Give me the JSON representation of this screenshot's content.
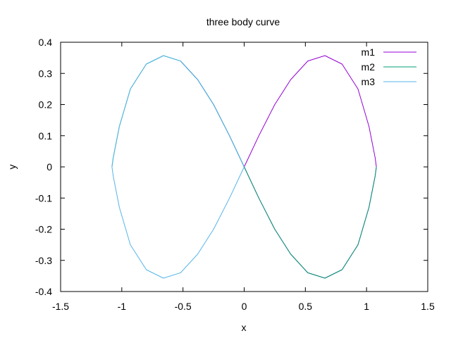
{
  "chart_data": {
    "type": "line",
    "title": "three body curve",
    "xlabel": "x",
    "ylabel": "y",
    "xlim": [
      -1.5,
      1.5
    ],
    "ylim": [
      -0.4,
      0.4
    ],
    "xticks": [
      -1.5,
      -1,
      -0.5,
      0,
      0.5,
      1,
      1.5
    ],
    "yticks": [
      -0.4,
      -0.3,
      -0.2,
      -0.1,
      0,
      0.1,
      0.2,
      0.3,
      0.4
    ],
    "xtick_labels": [
      "-1.5",
      "-1",
      "-0.5",
      "0",
      "0.5",
      "1",
      "1.5"
    ],
    "ytick_labels": [
      "-0.4",
      "-0.3",
      "-0.2",
      "-0.1",
      "0",
      "0.1",
      "0.2",
      "0.3",
      "0.4"
    ],
    "grid": false,
    "legend_position": "top-right",
    "series": [
      {
        "name": "m1",
        "color": "#9400d3",
        "x": [
          0.0,
          0.12,
          0.25,
          0.38,
          0.52,
          0.66,
          0.8,
          0.93,
          1.02,
          1.07,
          1.08,
          1.07,
          1.02,
          0.93,
          0.8,
          0.66,
          0.52,
          0.38,
          0.25,
          0.12,
          0.0,
          -0.12,
          -0.25,
          -0.38,
          -0.52
        ],
        "y": [
          0.0,
          0.1,
          0.2,
          0.28,
          0.34,
          0.357,
          0.33,
          0.25,
          0.13,
          0.03,
          0.0,
          -0.03,
          -0.13,
          -0.25,
          -0.33,
          -0.357,
          -0.34,
          -0.28,
          -0.2,
          -0.1,
          0.0,
          0.1,
          0.2,
          0.28,
          0.34
        ]
      },
      {
        "name": "m2",
        "color": "#009e73",
        "x": [
          -1.08,
          -1.07,
          -1.02,
          -0.93,
          -0.8,
          -0.66,
          -0.52,
          -0.38,
          -0.25,
          -0.12,
          0.0,
          0.12,
          0.25,
          0.38,
          0.52,
          0.66,
          0.8,
          0.93,
          1.02,
          1.07,
          1.08
        ],
        "y": [
          0.0,
          0.03,
          0.13,
          0.25,
          0.33,
          0.357,
          0.34,
          0.28,
          0.2,
          0.1,
          0.0,
          -0.1,
          -0.2,
          -0.28,
          -0.34,
          -0.357,
          -0.33,
          -0.25,
          -0.13,
          -0.03,
          0.0
        ]
      },
      {
        "name": "m3",
        "color": "#56b4e9",
        "x": [
          0.0,
          -0.12,
          -0.25,
          -0.38,
          -0.52,
          -0.66,
          -0.8,
          -0.93,
          -1.02,
          -1.07,
          -1.08,
          -1.07,
          -1.02,
          -0.93,
          -0.8,
          -0.66,
          -0.52,
          -0.38,
          -0.25,
          -0.12,
          0.0
        ],
        "y": [
          0.0,
          -0.1,
          -0.2,
          -0.28,
          -0.34,
          -0.357,
          -0.33,
          -0.25,
          -0.13,
          -0.03,
          0.0,
          0.03,
          0.13,
          0.25,
          0.33,
          0.357,
          0.34,
          0.28,
          0.2,
          0.1,
          0.0
        ]
      }
    ]
  }
}
